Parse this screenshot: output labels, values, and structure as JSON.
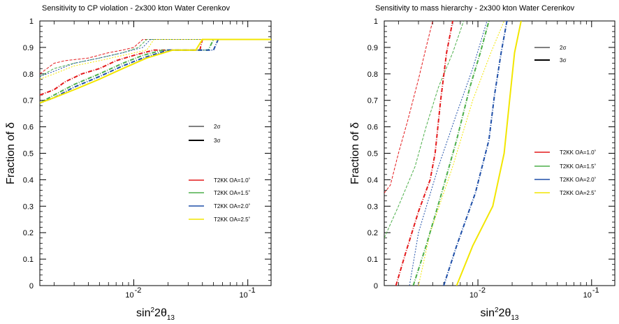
{
  "chart_data": [
    {
      "type": "line",
      "title": "Sensitivity to CP violation - 2x300 kton Water Cerenkov",
      "xlabel": "sin²2θ₁₃",
      "ylabel": "Fraction of δ",
      "xscale": "log",
      "xlim": [
        0.0015,
        0.16
      ],
      "ylim": [
        0,
        1
      ],
      "yticks": [
        0,
        0.1,
        0.2,
        0.3,
        0.4,
        0.5,
        0.6,
        0.7,
        0.8,
        0.9,
        1
      ],
      "xticks": [
        {
          "value": 0.01,
          "base": "10",
          "exp": "-2"
        },
        {
          "value": 0.1,
          "base": "10",
          "exp": "-1"
        }
      ],
      "style_legend": [
        {
          "label": "2σ",
          "dash": "solid",
          "width": 1
        },
        {
          "label": "3σ",
          "dash": "solid",
          "width": 2
        }
      ],
      "color_legend": [
        {
          "label": "T2KK OA=1.0˚",
          "color": "#e41a1c"
        },
        {
          "label": "T2KK OA=1.5˚",
          "color": "#4daf4a"
        },
        {
          "label": "T2KK OA=2.0˚",
          "color": "#1f4fa8"
        },
        {
          "label": "T2KK OA=2.5˚",
          "color": "#f2e600"
        }
      ],
      "series": [
        {
          "color": "#e41a1c",
          "width": 1,
          "dash": "4,2",
          "points": [
            [
              0.0015,
              0.8
            ],
            [
              0.002,
              0.84
            ],
            [
              0.0025,
              0.85
            ],
            [
              0.004,
              0.86
            ],
            [
              0.006,
              0.88
            ],
            [
              0.008,
              0.89
            ],
            [
              0.01,
              0.9
            ],
            [
              0.012,
              0.93
            ],
            [
              0.16,
              0.93
            ]
          ]
        },
        {
          "color": "#4daf4a",
          "width": 1,
          "dash": "4,2",
          "points": [
            [
              0.0015,
              0.79
            ],
            [
              0.002,
              0.82
            ],
            [
              0.003,
              0.84
            ],
            [
              0.005,
              0.86
            ],
            [
              0.008,
              0.88
            ],
            [
              0.011,
              0.9
            ],
            [
              0.013,
              0.93
            ],
            [
              0.16,
              0.93
            ]
          ]
        },
        {
          "color": "#1f4fa8",
          "width": 1,
          "dash": "2,2",
          "points": [
            [
              0.0015,
              0.79
            ],
            [
              0.002,
              0.81
            ],
            [
              0.003,
              0.84
            ],
            [
              0.005,
              0.86
            ],
            [
              0.008,
              0.88
            ],
            [
              0.012,
              0.9
            ],
            [
              0.014,
              0.93
            ],
            [
              0.16,
              0.93
            ]
          ]
        },
        {
          "color": "#f2e600",
          "width": 1,
          "dash": "2,2",
          "points": [
            [
              0.0015,
              0.78
            ],
            [
              0.002,
              0.8
            ],
            [
              0.003,
              0.83
            ],
            [
              0.005,
              0.85
            ],
            [
              0.008,
              0.87
            ],
            [
              0.013,
              0.89
            ],
            [
              0.015,
              0.93
            ],
            [
              0.16,
              0.93
            ]
          ]
        },
        {
          "color": "#e41a1c",
          "width": 2,
          "dash": "6,2,1,2",
          "points": [
            [
              0.0015,
              0.72
            ],
            [
              0.002,
              0.74
            ],
            [
              0.0025,
              0.77
            ],
            [
              0.0035,
              0.8
            ],
            [
              0.005,
              0.82
            ],
            [
              0.007,
              0.85
            ],
            [
              0.01,
              0.87
            ],
            [
              0.015,
              0.89
            ],
            [
              0.038,
              0.89
            ],
            [
              0.04,
              0.93
            ],
            [
              0.16,
              0.93
            ]
          ]
        },
        {
          "color": "#4daf4a",
          "width": 2,
          "dash": "6,2,1,2",
          "points": [
            [
              0.0015,
              0.69
            ],
            [
              0.002,
              0.72
            ],
            [
              0.003,
              0.76
            ],
            [
              0.005,
              0.8
            ],
            [
              0.008,
              0.84
            ],
            [
              0.012,
              0.87
            ],
            [
              0.018,
              0.89
            ],
            [
              0.045,
              0.89
            ],
            [
              0.05,
              0.93
            ],
            [
              0.16,
              0.93
            ]
          ]
        },
        {
          "color": "#1f4fa8",
          "width": 2,
          "dash": "6,2,1,2",
          "points": [
            [
              0.0015,
              0.69
            ],
            [
              0.002,
              0.71
            ],
            [
              0.003,
              0.75
            ],
            [
              0.005,
              0.79
            ],
            [
              0.008,
              0.83
            ],
            [
              0.012,
              0.86
            ],
            [
              0.02,
              0.89
            ],
            [
              0.05,
              0.89
            ],
            [
              0.055,
              0.93
            ],
            [
              0.16,
              0.93
            ]
          ]
        },
        {
          "color": "#f2e600",
          "width": 2,
          "dash": "",
          "points": [
            [
              0.0015,
              0.69
            ],
            [
              0.002,
              0.71
            ],
            [
              0.003,
              0.74
            ],
            [
              0.005,
              0.78
            ],
            [
              0.008,
              0.82
            ],
            [
              0.013,
              0.86
            ],
            [
              0.022,
              0.89
            ],
            [
              0.035,
              0.89
            ],
            [
              0.04,
              0.93
            ],
            [
              0.16,
              0.93
            ]
          ]
        }
      ]
    },
    {
      "type": "line",
      "title": "Sensitivity to mass hierarchy - 2x300 kton Water Cerenkov",
      "xlabel": "sin²2θ₁₃",
      "ylabel": "Fraction of δ",
      "xscale": "log",
      "xlim": [
        0.0015,
        0.16
      ],
      "ylim": [
        0,
        1
      ],
      "yticks": [
        0,
        0.1,
        0.2,
        0.3,
        0.4,
        0.5,
        0.6,
        0.7,
        0.8,
        0.9,
        1
      ],
      "xticks": [
        {
          "value": 0.01,
          "base": "10",
          "exp": "-2"
        },
        {
          "value": 0.1,
          "base": "10",
          "exp": "-1"
        }
      ],
      "style_legend": [
        {
          "label": "2σ",
          "dash": "solid",
          "width": 1
        },
        {
          "label": "3σ",
          "dash": "solid",
          "width": 2
        }
      ],
      "color_legend": [
        {
          "label": "T2KK OA=1.0˚",
          "color": "#e41a1c"
        },
        {
          "label": "T2KK OA=1.5˚",
          "color": "#4daf4a"
        },
        {
          "label": "T2KK OA=2.0˚",
          "color": "#1f4fa8"
        },
        {
          "label": "T2KK OA=2.5˚",
          "color": "#f2e600"
        }
      ],
      "series": [
        {
          "color": "#e41a1c",
          "width": 1,
          "dash": "4,2",
          "points": [
            [
              0.0015,
              0.35
            ],
            [
              0.0017,
              0.38
            ],
            [
              0.002,
              0.5
            ],
            [
              0.0024,
              0.62
            ],
            [
              0.003,
              0.78
            ],
            [
              0.0035,
              0.9
            ],
            [
              0.004,
              1.0
            ]
          ]
        },
        {
          "color": "#4daf4a",
          "width": 1,
          "dash": "4,2",
          "points": [
            [
              0.0015,
              0.18
            ],
            [
              0.002,
              0.3
            ],
            [
              0.0028,
              0.45
            ],
            [
              0.0035,
              0.6
            ],
            [
              0.0045,
              0.75
            ],
            [
              0.006,
              0.88
            ],
            [
              0.0075,
              1.0
            ]
          ]
        },
        {
          "color": "#1f4fa8",
          "width": 1,
          "dash": "2,2",
          "points": [
            [
              0.0025,
              0.0
            ],
            [
              0.003,
              0.2
            ],
            [
              0.0045,
              0.45
            ],
            [
              0.0065,
              0.65
            ],
            [
              0.009,
              0.82
            ],
            [
              0.012,
              1.0
            ]
          ]
        },
        {
          "color": "#f2e600",
          "width": 1,
          "dash": "2,2",
          "points": [
            [
              0.003,
              0.0
            ],
            [
              0.0038,
              0.2
            ],
            [
              0.006,
              0.45
            ],
            [
              0.009,
              0.7
            ],
            [
              0.013,
              0.88
            ],
            [
              0.017,
              1.0
            ]
          ]
        },
        {
          "color": "#e41a1c",
          "width": 2,
          "dash": "6,2,1,2",
          "points": [
            [
              0.0019,
              0.0
            ],
            [
              0.0023,
              0.12
            ],
            [
              0.003,
              0.28
            ],
            [
              0.0038,
              0.4
            ],
            [
              0.0042,
              0.5
            ],
            [
              0.0047,
              0.7
            ],
            [
              0.0053,
              0.88
            ],
            [
              0.006,
              1.0
            ]
          ]
        },
        {
          "color": "#4daf4a",
          "width": 2,
          "dash": "6,2,1,2",
          "points": [
            [
              0.0027,
              0.0
            ],
            [
              0.0035,
              0.15
            ],
            [
              0.0048,
              0.35
            ],
            [
              0.0065,
              0.55
            ],
            [
              0.0085,
              0.75
            ],
            [
              0.0105,
              0.88
            ],
            [
              0.0125,
              1.0
            ]
          ]
        },
        {
          "color": "#1f4fa8",
          "width": 2,
          "dash": "6,2,1,2",
          "points": [
            [
              0.005,
              0.0
            ],
            [
              0.0065,
              0.15
            ],
            [
              0.0095,
              0.35
            ],
            [
              0.0125,
              0.55
            ],
            [
              0.014,
              0.72
            ],
            [
              0.016,
              0.88
            ],
            [
              0.018,
              1.0
            ]
          ]
        },
        {
          "color": "#f2e600",
          "width": 2,
          "dash": "",
          "points": [
            [
              0.0065,
              0.0
            ],
            [
              0.009,
              0.15
            ],
            [
              0.0135,
              0.3
            ],
            [
              0.017,
              0.5
            ],
            [
              0.019,
              0.7
            ],
            [
              0.021,
              0.88
            ],
            [
              0.024,
              1.0
            ]
          ]
        }
      ]
    }
  ]
}
